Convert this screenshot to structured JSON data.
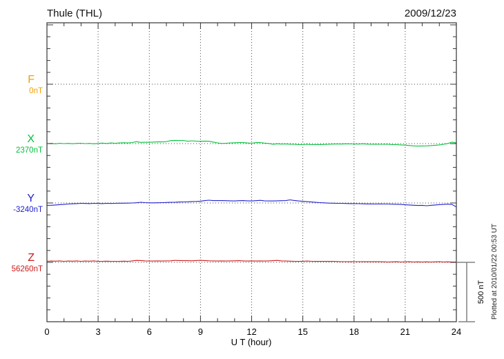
{
  "header": {
    "title": "Thule (THL)",
    "date": "2009/12/23"
  },
  "footer": {
    "plotted_at": "Plotted at 2010/01/22 00:53 UT"
  },
  "scale_bar": {
    "label": "500 nT",
    "span_nT": 500
  },
  "colors": {
    "f": "#f0a000",
    "x": "#00c23a",
    "y": "#2020cc",
    "z": "#cc1a1a",
    "frame": "#333333",
    "grid": "#444444",
    "scalebar": "#808080"
  },
  "chart_data": {
    "type": "line",
    "title": "Thule (THL)",
    "date": "2009/12/23",
    "xlabel": "U T (hour)",
    "x_range": [
      0,
      24
    ],
    "x_ticks": [
      0,
      3,
      6,
      9,
      12,
      15,
      18,
      21,
      24
    ],
    "x_step_hours": 0.25,
    "grid": "vertical dotted lines every 3 hours; horizontal dotted line at each component baseline",
    "legend_position": "left margin, one colored label per stacked trace",
    "scale_bar_nT": 500,
    "series": [
      {
        "name": "F",
        "baseline_label": "0nT",
        "baseline_nT": 0,
        "color": "#f0a000",
        "offsets_nT": []
      },
      {
        "name": "X",
        "baseline_label": "2370nT",
        "baseline_nT": 2370,
        "color": "#00c23a",
        "offsets_nT": [
          0,
          2,
          -2,
          3,
          0,
          2,
          -1,
          2,
          3,
          0,
          2,
          -2,
          2,
          4,
          1,
          5,
          3,
          5,
          7,
          5,
          9,
          16,
          10,
          11,
          11,
          13,
          15,
          14,
          17,
          25,
          27,
          26,
          26,
          20,
          23,
          21,
          20,
          21,
          20,
          13,
          6,
          1,
          3,
          5,
          7,
          9,
          8,
          5,
          3,
          8,
          9,
          4,
          1,
          -5,
          -2,
          -4,
          -3,
          -5,
          -6,
          -8,
          -9,
          -6,
          -8,
          -9,
          -8,
          -7,
          -6,
          -4,
          -3,
          -4,
          -2,
          -3,
          -3,
          -4,
          -2,
          -4,
          -6,
          -5,
          -6,
          -6,
          -6,
          -8,
          -9,
          -11,
          -13,
          -16,
          -19,
          -21,
          -20,
          -19,
          -17,
          -14,
          -11,
          -6,
          1,
          12,
          5
        ]
      },
      {
        "name": "Y",
        "baseline_label": "-3240nT",
        "baseline_nT": -3240,
        "color": "#2020cc",
        "offsets_nT": [
          -20,
          -19,
          -17,
          -14,
          -12,
          -9,
          -7,
          -5,
          -3,
          -4,
          -5,
          -3,
          -4,
          -5,
          -3,
          -4,
          -3,
          -2,
          -2,
          -1,
          0,
          2,
          6,
          3,
          1,
          1,
          2,
          3,
          4,
          5,
          6,
          8,
          9,
          10,
          12,
          13,
          15,
          20,
          23,
          20,
          20,
          20,
          19,
          18,
          17,
          19,
          20,
          18,
          17,
          19,
          22,
          18,
          17,
          17,
          18,
          19,
          20,
          26,
          21,
          17,
          14,
          11,
          8,
          5,
          3,
          1,
          -1,
          -2,
          -3,
          -3,
          -4,
          -5,
          -5,
          -6,
          -7,
          -8,
          -8,
          -9,
          -8,
          -9,
          -9,
          -10,
          -11,
          -12,
          -15,
          -17,
          -19,
          -21,
          -20,
          -23,
          -20,
          -17,
          -14,
          -12,
          -10,
          -13,
          -34
        ]
      },
      {
        "name": "Z",
        "baseline_label": "56260nT",
        "baseline_nT": 56260,
        "color": "#cc1a1a",
        "offsets_nT": [
          9,
          11,
          10,
          12,
          9,
          11,
          10,
          12,
          9,
          11,
          10,
          12,
          9,
          9,
          10,
          9,
          9,
          9,
          10,
          9,
          12,
          16,
          15,
          12,
          11,
          11,
          12,
          11,
          12,
          13,
          16,
          15,
          14,
          14,
          13,
          15,
          17,
          15,
          13,
          12,
          11,
          12,
          11,
          12,
          13,
          14,
          12,
          11,
          12,
          11,
          12,
          11,
          12,
          14,
          16,
          12,
          11,
          10,
          9,
          8,
          9,
          11,
          9,
          8,
          9,
          8,
          9,
          8,
          7,
          6,
          6,
          5,
          6,
          6,
          5,
          6,
          5,
          6,
          5,
          4,
          3,
          4,
          5,
          3,
          4,
          5,
          3,
          4,
          3,
          4,
          3,
          4,
          5,
          3,
          4,
          3,
          3
        ]
      }
    ]
  }
}
